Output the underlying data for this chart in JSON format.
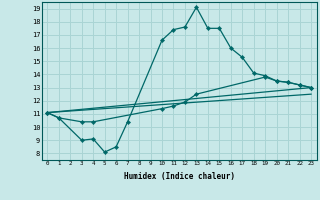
{
  "title": "",
  "xlabel": "Humidex (Indice chaleur)",
  "xlim": [
    -0.5,
    23.5
  ],
  "ylim": [
    7.5,
    19.5
  ],
  "xticks": [
    0,
    1,
    2,
    3,
    4,
    5,
    6,
    7,
    8,
    9,
    10,
    11,
    12,
    13,
    14,
    15,
    16,
    17,
    18,
    19,
    20,
    21,
    22,
    23
  ],
  "yticks": [
    8,
    9,
    10,
    11,
    12,
    13,
    14,
    15,
    16,
    17,
    18,
    19
  ],
  "background_color": "#c8e8e8",
  "grid_color": "#aad4d4",
  "line_color": "#006868",
  "series": [
    {
      "x": [
        0,
        1,
        3,
        4,
        5,
        6,
        7,
        10,
        11,
        12,
        13,
        14,
        15,
        16,
        17,
        18,
        19,
        20,
        21,
        22,
        23
      ],
      "y": [
        11.1,
        10.7,
        9.0,
        9.1,
        8.1,
        8.5,
        10.4,
        16.6,
        17.4,
        17.6,
        19.1,
        17.5,
        17.5,
        16.0,
        15.3,
        14.1,
        13.9,
        13.5,
        13.4,
        13.2,
        13.0
      ],
      "marker": true
    },
    {
      "x": [
        0,
        1,
        3,
        4,
        10,
        11,
        12,
        13,
        19,
        20,
        21,
        22,
        23
      ],
      "y": [
        11.1,
        10.7,
        10.4,
        10.4,
        11.4,
        11.6,
        11.9,
        12.5,
        13.8,
        13.5,
        13.4,
        13.2,
        13.0
      ],
      "marker": true
    },
    {
      "x": [
        0,
        23
      ],
      "y": [
        11.1,
        13.0
      ],
      "marker": false
    },
    {
      "x": [
        0,
        23
      ],
      "y": [
        11.1,
        12.5
      ],
      "marker": false
    }
  ]
}
